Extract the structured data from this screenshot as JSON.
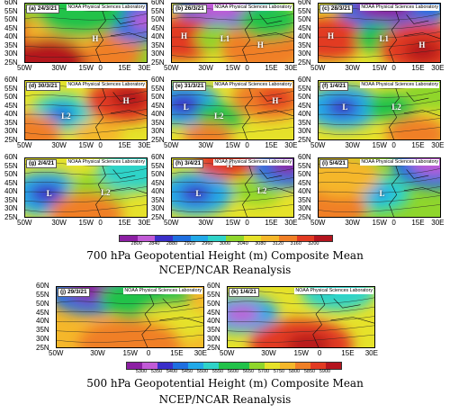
{
  "top_group": {
    "panels": [
      {
        "id": "a",
        "label": "(a) 24/3/21",
        "credit": "NOAA Physical Sciences Laboratory",
        "markers": [
          {
            "t": "H",
            "x": 0.55,
            "y": 0.6
          }
        ]
      },
      {
        "id": "b",
        "label": "(b) 26/3/21",
        "credit": "NOAA Physical Sciences Laboratory",
        "markers": [
          {
            "t": "H",
            "x": 0.08,
            "y": 0.55
          },
          {
            "t": "L1",
            "x": 0.4,
            "y": 0.6
          },
          {
            "t": "H",
            "x": 0.7,
            "y": 0.7
          }
        ]
      },
      {
        "id": "c",
        "label": "(c) 28/3/21",
        "credit": "NOAA Physical Sciences Laboratory",
        "markers": [
          {
            "t": "H",
            "x": 0.08,
            "y": 0.55
          },
          {
            "t": "L1",
            "x": 0.5,
            "y": 0.6
          },
          {
            "t": "H",
            "x": 0.82,
            "y": 0.7
          }
        ]
      },
      {
        "id": "d",
        "label": "(d) 30/3/21",
        "credit": "NOAA Physical Sciences Laboratory",
        "markers": [
          {
            "t": "L2",
            "x": 0.3,
            "y": 0.6
          },
          {
            "t": "H",
            "x": 0.8,
            "y": 0.35
          }
        ]
      },
      {
        "id": "e",
        "label": "(e) 31/3/21",
        "credit": "NOAA Physical Sciences Laboratory",
        "markers": [
          {
            "t": "L",
            "x": 0.1,
            "y": 0.45
          },
          {
            "t": "L2",
            "x": 0.35,
            "y": 0.6
          },
          {
            "t": "H",
            "x": 0.82,
            "y": 0.35
          }
        ]
      },
      {
        "id": "f",
        "label": "(f) 1/4/21",
        "credit": "NOAA Physical Sciences Laboratory",
        "markers": [
          {
            "t": "L",
            "x": 0.2,
            "y": 0.45
          },
          {
            "t": "L2",
            "x": 0.6,
            "y": 0.45
          }
        ]
      },
      {
        "id": "g",
        "label": "(g) 2/4/21",
        "credit": "NOAA Physical Sciences Laboratory",
        "markers": [
          {
            "t": "L",
            "x": 0.18,
            "y": 0.6
          },
          {
            "t": "L2",
            "x": 0.62,
            "y": 0.58
          }
        ]
      },
      {
        "id": "h",
        "label": "(h) 3/4/21",
        "credit": "NOAA Physical Sciences Laboratory",
        "markers": [
          {
            "t": "H",
            "x": 0.45,
            "y": 0.12
          },
          {
            "t": "L",
            "x": 0.2,
            "y": 0.6
          },
          {
            "t": "L2",
            "x": 0.7,
            "y": 0.55
          }
        ]
      },
      {
        "id": "i",
        "label": "(i) 5/4/21",
        "credit": "NOAA Physical Sciences Laboratory",
        "markers": [
          {
            "t": "L",
            "x": 0.5,
            "y": 0.6
          }
        ]
      }
    ],
    "lat_ticks": [
      "60N",
      "55N",
      "50N",
      "45N",
      "40N",
      "35N",
      "30N",
      "25N"
    ],
    "lon_ticks": [
      "50W",
      "30W",
      "15W",
      "0",
      "15E",
      "30E"
    ],
    "colorbar_ticks": [
      "2800",
      "2840",
      "2880",
      "2920",
      "2960",
      "3000",
      "3040",
      "3080",
      "3120",
      "3160",
      "3200"
    ],
    "caption_line1": "700 hPa Geopotential Height (m) Composite Mean",
    "caption_line2": "NCEP/NCAR Reanalysis"
  },
  "bottom_group": {
    "panels": [
      {
        "id": "j",
        "label": "(j) 29/3/21",
        "credit": "NOAA Physical Sciences Laboratory",
        "markers": []
      },
      {
        "id": "k",
        "label": "(k) 1/4/21",
        "credit": "NOAA Physical Sciences Laboratory",
        "markers": []
      }
    ],
    "lat_ticks": [
      "60N",
      "55N",
      "50N",
      "45N",
      "40N",
      "35N",
      "30N",
      "25N"
    ],
    "lon_ticks": [
      "50W",
      "30W",
      "15W",
      "0",
      "15E",
      "30E"
    ],
    "colorbar_ticks": [
      "5300",
      "5350",
      "5400",
      "5450",
      "5500",
      "5550",
      "5600",
      "5650",
      "5700",
      "5750",
      "5800",
      "5850",
      "5900"
    ],
    "caption_line1": "500 hPa Geopotential Height (m) Composite Mean",
    "caption_line2": "NCEP/NCAR Reanalysis"
  },
  "colors": {
    "palette": [
      "#8c1fa3",
      "#c15ad6",
      "#3b2fc9",
      "#1f6fe0",
      "#22a9e8",
      "#2fd3c8",
      "#22c24a",
      "#8fd62c",
      "#e6e22a",
      "#f5b72a",
      "#f07f26",
      "#e23b22",
      "#b4141e"
    ]
  }
}
